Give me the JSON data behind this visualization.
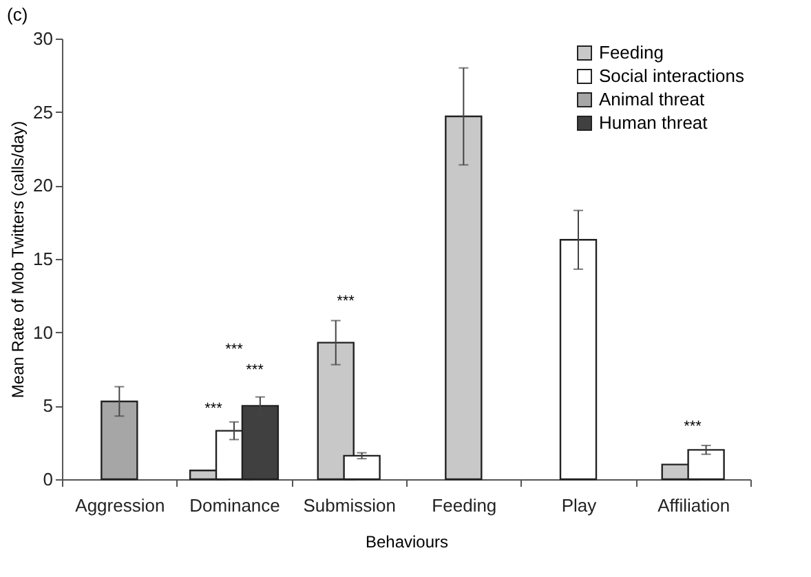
{
  "chart_data": {
    "type": "bar",
    "title": "(c)",
    "xlabel": "Behaviours",
    "ylabel": "Mean Rate of Mob Twitters (calls/day)",
    "categories": [
      "Aggression",
      "Dominance",
      "Submission",
      "Feeding",
      "Play",
      "Affiliation"
    ],
    "series": [
      {
        "name": "Feeding",
        "color": "#c8c8c8",
        "values": [
          null,
          0.6,
          9.3,
          24.7,
          null,
          1.0
        ],
        "errors": [
          null,
          null,
          1.5,
          3.3,
          null,
          null
        ]
      },
      {
        "name": "Social interactions",
        "color": "#ffffff",
        "values": [
          null,
          3.3,
          1.6,
          null,
          16.3,
          2.0
        ],
        "errors": [
          null,
          0.6,
          0.2,
          null,
          2.0,
          0.3
        ]
      },
      {
        "name": "Animal threat",
        "color": "#a6a6a6",
        "values": [
          5.3,
          null,
          null,
          null,
          null,
          null
        ],
        "errors": [
          1.0,
          null,
          null,
          null,
          null,
          null
        ]
      },
      {
        "name": "Human threat",
        "color": "#404040",
        "values": [
          null,
          5.0,
          null,
          null,
          null,
          null
        ],
        "errors": [
          null,
          0.6,
          null,
          null,
          null,
          null
        ]
      }
    ],
    "ylim": [
      0,
      30
    ],
    "yticks": [
      0,
      5,
      10,
      15,
      20,
      25,
      30
    ],
    "grid": false,
    "legend": "top right",
    "annotations": [
      "***",
      "***",
      "***",
      "***",
      "***"
    ]
  }
}
